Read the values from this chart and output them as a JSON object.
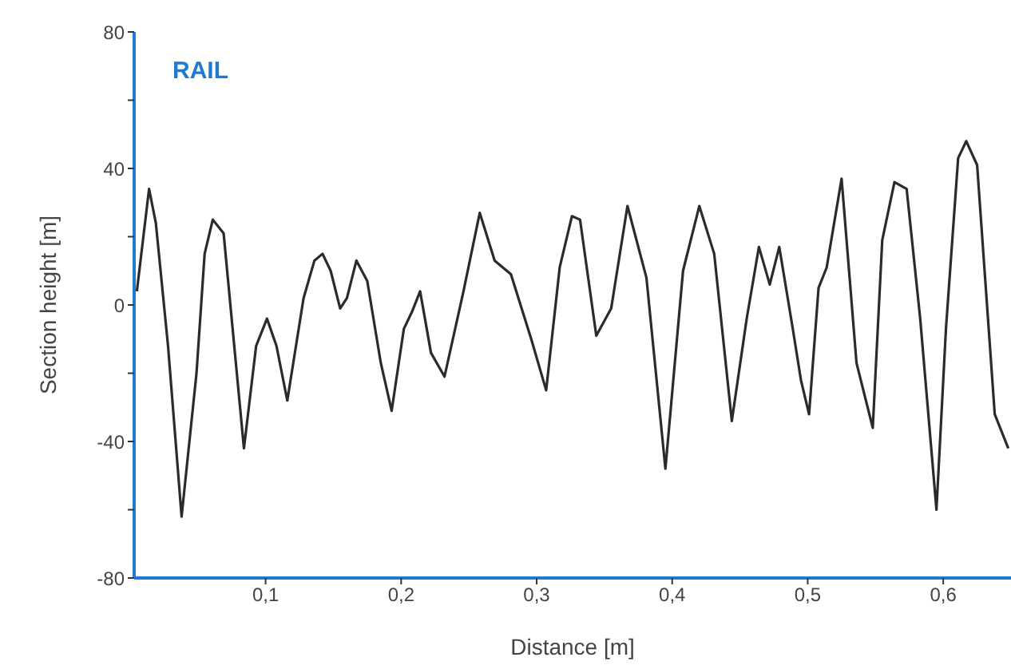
{
  "chart_data": {
    "type": "line",
    "title": "RAIL",
    "xlabel": "Distance [m]",
    "ylabel": "Section height  [m]",
    "x": [
      0.005,
      0.014,
      0.019,
      0.028,
      0.038,
      0.049,
      0.055,
      0.061,
      0.069,
      0.084,
      0.093,
      0.101,
      0.108,
      0.116,
      0.128,
      0.136,
      0.142,
      0.148,
      0.155,
      0.16,
      0.167,
      0.175,
      0.185,
      0.193,
      0.202,
      0.208,
      0.214,
      0.222,
      0.232,
      0.246,
      0.258,
      0.269,
      0.281,
      0.296,
      0.307,
      0.317,
      0.326,
      0.332,
      0.344,
      0.355,
      0.367,
      0.381,
      0.395,
      0.408,
      0.42,
      0.431,
      0.444,
      0.455,
      0.464,
      0.472,
      0.479,
      0.489,
      0.495,
      0.501,
      0.508,
      0.514,
      0.525,
      0.536,
      0.548,
      0.555,
      0.564,
      0.573,
      0.583,
      0.595,
      0.602,
      0.611,
      0.617,
      0.625,
      0.638,
      0.648
    ],
    "series": [
      {
        "color": "#2b2b2b",
        "values": [
          4,
          34,
          24,
          -12,
          -62,
          -20,
          15,
          25,
          21,
          -42,
          -12,
          -4,
          -12,
          -28,
          2,
          13,
          15,
          10,
          -1,
          2,
          13,
          7,
          -17,
          -31,
          -7,
          -2,
          4,
          -14,
          -21,
          4,
          27,
          13,
          9,
          -10,
          -25,
          11,
          26,
          25,
          -9,
          -1,
          29,
          8,
          -48,
          10,
          29,
          15,
          -34,
          -4,
          17,
          6,
          17,
          -7,
          -22,
          -32,
          5,
          11,
          37,
          -17,
          -36,
          19,
          36,
          34,
          -4,
          -60,
          -7,
          43,
          48,
          41,
          -32,
          -42
        ]
      }
    ],
    "xlim": [
      0.003,
      0.65
    ],
    "xticks": [
      {
        "value": 0.1,
        "label": "0,1"
      },
      {
        "value": 0.2,
        "label": "0,2"
      },
      {
        "value": 0.3,
        "label": "0,3"
      },
      {
        "value": 0.4,
        "label": "0,4"
      },
      {
        "value": 0.5,
        "label": "0,5"
      },
      {
        "value": 0.6,
        "label": "0,6"
      }
    ],
    "ylim": [
      -80,
      80
    ],
    "yticks": [
      -80,
      {
        "value": -60,
        "label": null
      },
      -40,
      {
        "value": -20,
        "label": null
      },
      0,
      {
        "value": 20,
        "label": null
      },
      40,
      {
        "value": 60,
        "label": null
      },
      80
    ],
    "grid": false,
    "legend": false,
    "marker": "none",
    "line_style": "solid"
  }
}
